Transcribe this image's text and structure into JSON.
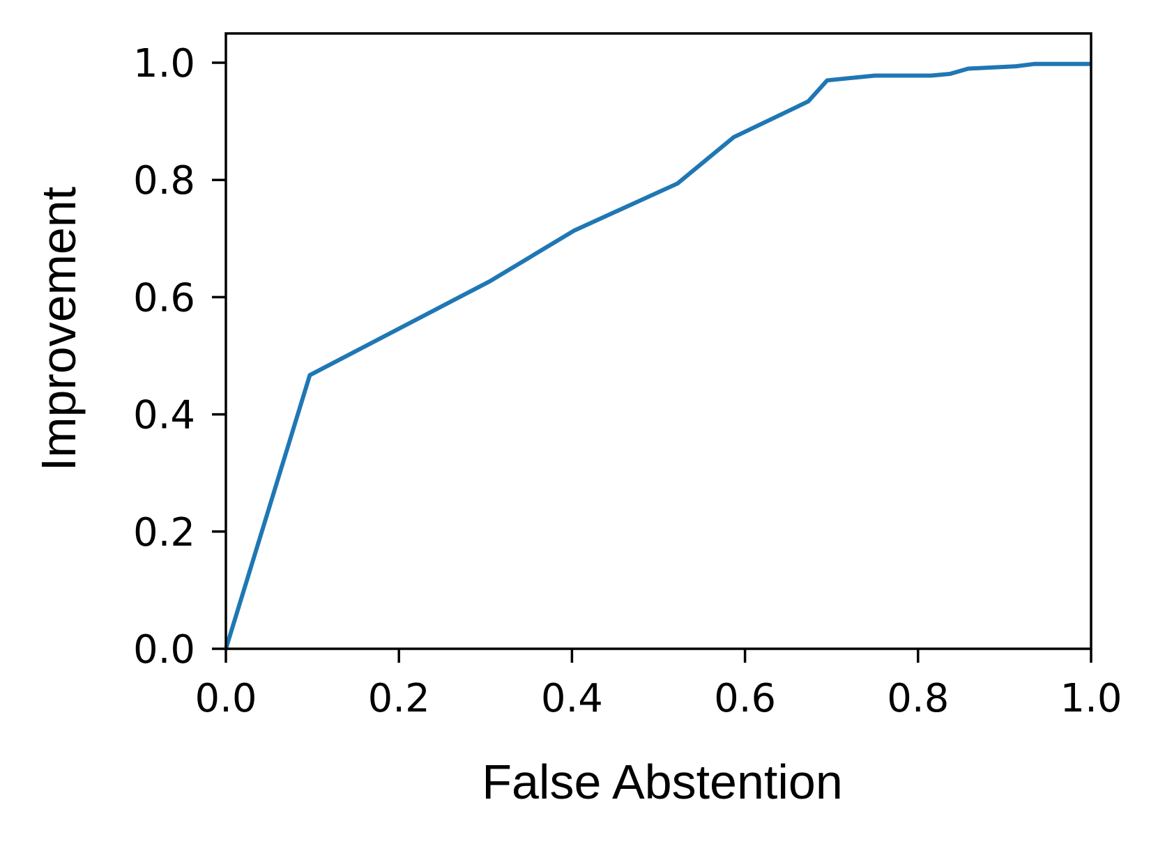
{
  "chart_data": {
    "type": "line",
    "title": "",
    "xlabel": "False Abstention",
    "ylabel": "Improvement",
    "xlim": [
      0.0,
      1.0
    ],
    "ylim": [
      0.0,
      1.05
    ],
    "xticks": [
      "0.0",
      "0.2",
      "0.4",
      "0.6",
      "0.8",
      "1.0"
    ],
    "yticks": [
      "0.0",
      "0.2",
      "0.4",
      "0.6",
      "0.8",
      "1.0"
    ],
    "grid": false,
    "legend": "none",
    "series": [
      {
        "name": "Improvement",
        "color": "#1f77b4",
        "x": [
          0.0,
          0.097,
          0.305,
          0.403,
          0.522,
          0.587,
          0.673,
          0.695,
          0.75,
          0.815,
          0.837,
          0.858,
          0.913,
          0.935,
          1.0
        ],
        "y": [
          0.0,
          0.467,
          0.627,
          0.714,
          0.794,
          0.873,
          0.934,
          0.97,
          0.978,
          0.978,
          0.981,
          0.99,
          0.994,
          0.998,
          0.998
        ]
      }
    ]
  }
}
